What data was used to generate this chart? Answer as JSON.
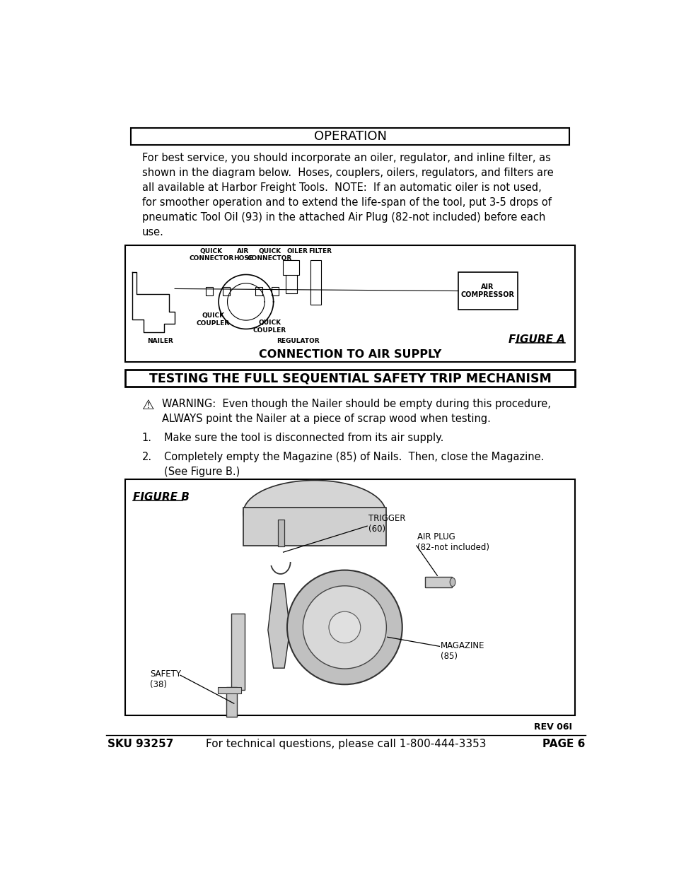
{
  "bg_color": "#ffffff",
  "page_width": 9.54,
  "page_height": 12.35,
  "title_operation": "OPERATION",
  "para1": "For best service, you should incorporate an oiler, regulator, and inline filter, as\nshown in the diagram below.  Hoses, couplers, oilers, regulators, and filters are\nall available at Harbor Freight Tools.  NOTE:  If an automatic oiler is not used,\nfor smoother operation and to extend the life-span of the tool, put 3-5 drops of\npneumatic Tool Oil (93) in the attached Air Plug (82-not included) before each\nuse.",
  "figure_a_caption": "CONNECTION TO AIR SUPPLY",
  "figure_a_label": "FIGURE A",
  "section2_title": "TESTING THE FULL SEQUENTIAL SAFETY TRIP MECHANISM",
  "warning_text": "WARNING:  Even though the Nailer should be empty during this procedure,\nALWAYS point the Nailer at a piece of scrap wood when testing.",
  "step1": "Make sure the tool is disconnected from its air supply.",
  "step2": "Completely empty the Magazine (85) of Nails.  Then, close the Magazine.\n(See Figure B.)",
  "figure_b_label": "FIGURE B",
  "trigger_label": "TRIGGER\n(60)",
  "air_plug_label": "AIR PLUG\n(82-not included)",
  "magazine_label": "MAGAZINE\n(85)",
  "safety_label": "SAFETY\n(38)",
  "rev_text": "REV 06I",
  "footer_sku": "SKU 93257",
  "footer_middle": "For technical questions, please call 1-800-444-3353",
  "footer_page": "PAGE 6",
  "body_fontsize": 10.5,
  "title_fontsize": 13,
  "section_title_fontsize": 12.5,
  "footer_fontsize": 11
}
